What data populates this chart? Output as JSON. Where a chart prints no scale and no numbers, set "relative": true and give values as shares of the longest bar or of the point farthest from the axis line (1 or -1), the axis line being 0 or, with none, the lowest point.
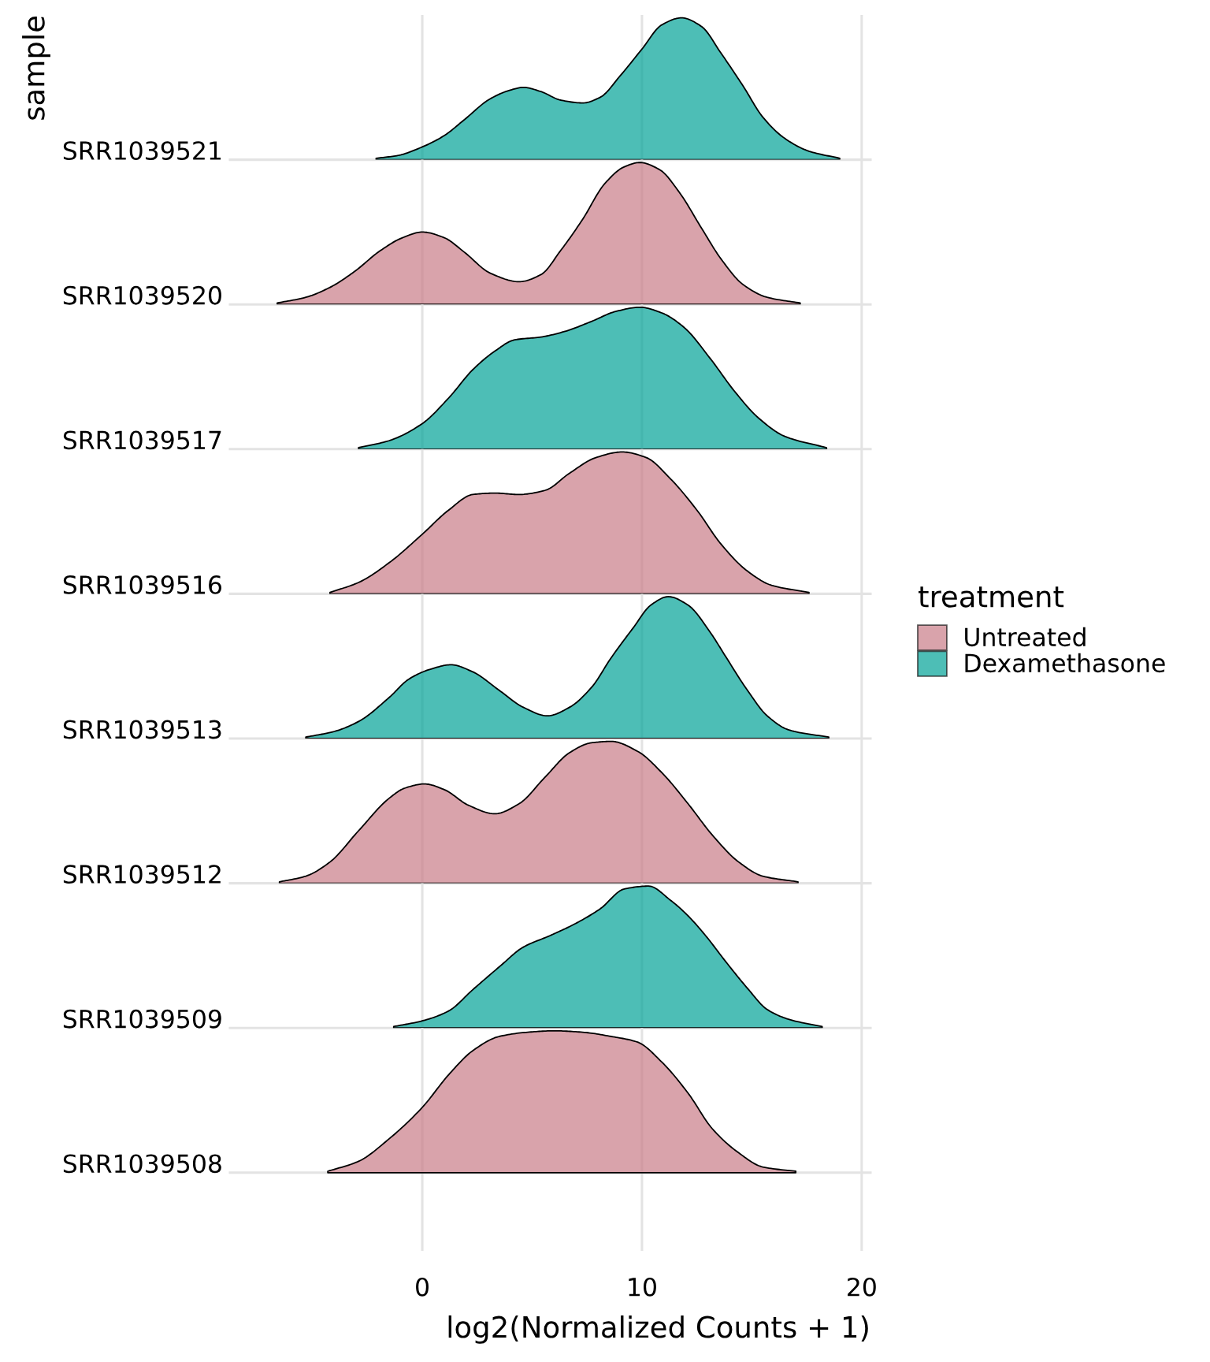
{
  "chart_data": [
    {
      "type": "area",
      "relative": true,
      "ylabel": "SRR1039521",
      "annotations": [
        "sample"
      ],
      "xlim": [
        -8.75,
        20.4
      ],
      "xticks": [
        0,
        10,
        20
      ],
      "tick_labels": false,
      "grid": "x",
      "x": [
        -2.1,
        -1.1,
        0,
        1,
        1.9,
        3.1,
        4,
        4.6,
        5.4,
        6.3,
        7.3,
        8.1,
        9,
        10,
        10.9,
        11.8,
        12.7,
        13.6,
        14.6,
        15.5,
        16.5,
        17.6,
        19
      ],
      "series": [
        {
          "name": "Dexamethasone",
          "color": "#01a297",
          "values": [
            0.01,
            0.03,
            0.09,
            0.17,
            0.28,
            0.43,
            0.49,
            0.51,
            0.48,
            0.42,
            0.4,
            0.44,
            0.59,
            0.78,
            0.95,
            1,
            0.94,
            0.75,
            0.52,
            0.3,
            0.15,
            0.06,
            0.01
          ]
        }
      ]
    },
    {
      "type": "area",
      "relative": true,
      "ylabel": "SRR1039520",
      "xlim": [
        -8.75,
        20.4
      ],
      "xticks": [
        0,
        10,
        20
      ],
      "tick_labels": false,
      "grid": "x",
      "x": [
        -6.6,
        -5.3,
        -4.2,
        -3.1,
        -1.9,
        -0.9,
        0,
        1,
        1.9,
        3.1,
        4.4,
        5.4,
        6.3,
        7.3,
        8.3,
        9.2,
        9.9,
        10.8,
        11.7,
        12.7,
        13.6,
        14.6,
        15.7,
        17.2
      ],
      "series": [
        {
          "name": "Untreated",
          "color": "#c97c88",
          "values": [
            0.01,
            0.05,
            0.12,
            0.23,
            0.38,
            0.47,
            0.51,
            0.47,
            0.37,
            0.22,
            0.16,
            0.21,
            0.38,
            0.6,
            0.85,
            0.97,
            1,
            0.95,
            0.79,
            0.54,
            0.32,
            0.14,
            0.05,
            0.01
          ]
        }
      ]
    },
    {
      "type": "area",
      "relative": true,
      "ylabel": "SRR1039517",
      "xlim": [
        -8.75,
        20.4
      ],
      "xticks": [
        0,
        10,
        20
      ],
      "tick_labels": false,
      "grid": "x",
      "x": [
        -2.9,
        -1.5,
        0,
        1.2,
        2.3,
        3.3,
        4.2,
        5.4,
        6.5,
        7.7,
        8.8,
        9.9,
        10.9,
        11.9,
        13.1,
        14.2,
        15.3,
        16.5,
        18.4
      ],
      "series": [
        {
          "name": "Dexamethasone",
          "color": "#01a297",
          "values": [
            0.01,
            0.06,
            0.18,
            0.36,
            0.56,
            0.69,
            0.77,
            0.79,
            0.83,
            0.9,
            0.97,
            1,
            0.96,
            0.86,
            0.64,
            0.41,
            0.22,
            0.09,
            0.01
          ]
        }
      ]
    },
    {
      "type": "area",
      "relative": true,
      "ylabel": "SRR1039516",
      "xlim": [
        -8.75,
        20.4
      ],
      "xticks": [
        0,
        10,
        20
      ],
      "tick_labels": false,
      "grid": "x",
      "x": [
        -4.2,
        -2.9,
        -1.5,
        0,
        1.2,
        2.3,
        3.3,
        4.4,
        5.6,
        6.7,
        7.9,
        9.1,
        10.2,
        11.3,
        12.5,
        13.6,
        14.8,
        15.9,
        17.6
      ],
      "series": [
        {
          "name": "Untreated",
          "color": "#c97c88",
          "values": [
            0.01,
            0.08,
            0.22,
            0.42,
            0.59,
            0.7,
            0.71,
            0.7,
            0.73,
            0.85,
            0.96,
            1,
            0.96,
            0.81,
            0.59,
            0.35,
            0.16,
            0.06,
            0.01
          ]
        }
      ]
    },
    {
      "type": "area",
      "relative": true,
      "ylabel": "SRR1039513",
      "legend": "right",
      "legend_title": "treatment",
      "xlim": [
        -8.75,
        20.4
      ],
      "xticks": [
        0,
        10,
        20
      ],
      "tick_labels": false,
      "grid": "x",
      "x": [
        -5.3,
        -4,
        -2.9,
        -1.5,
        -0.6,
        0.4,
        1.3,
        2.3,
        3.5,
        4.6,
        5.7,
        6.7,
        7.7,
        8.6,
        9.6,
        10.4,
        11.2,
        12.1,
        13.1,
        13.8,
        14.8,
        15.7,
        16.7,
        18.5
      ],
      "series": [
        {
          "name": "Dexamethasone",
          "color": "#01a297",
          "values": [
            0.01,
            0.05,
            0.12,
            0.29,
            0.42,
            0.49,
            0.52,
            0.47,
            0.34,
            0.22,
            0.16,
            0.22,
            0.36,
            0.57,
            0.78,
            0.94,
            1,
            0.94,
            0.75,
            0.58,
            0.34,
            0.16,
            0.06,
            0.01
          ]
        }
      ]
    },
    {
      "type": "area",
      "relative": true,
      "ylabel": "SRR1039512",
      "xlim": [
        -8.75,
        20.4
      ],
      "xticks": [
        0,
        10,
        20
      ],
      "tick_labels": false,
      "grid": "x",
      "x": [
        -6.5,
        -5.3,
        -4.2,
        -2.9,
        -1.5,
        -0.8,
        0.1,
        1,
        2.1,
        3.3,
        4.4,
        5.6,
        6.7,
        7.7,
        8.6,
        9.8,
        10.9,
        12.1,
        13.2,
        14.4,
        15.5,
        17.1
      ],
      "series": [
        {
          "name": "Untreated",
          "color": "#c97c88",
          "values": [
            0.01,
            0.05,
            0.15,
            0.37,
            0.6,
            0.67,
            0.7,
            0.66,
            0.55,
            0.49,
            0.56,
            0.75,
            0.92,
            0.99,
            1,
            0.93,
            0.78,
            0.56,
            0.34,
            0.15,
            0.05,
            0.01
          ]
        }
      ]
    },
    {
      "type": "area",
      "relative": true,
      "ylabel": "SRR1039509",
      "xlim": [
        -8.75,
        20.4
      ],
      "xticks": [
        0,
        10,
        20
      ],
      "tick_labels": false,
      "grid": "x",
      "x": [
        -1.3,
        0,
        1.2,
        2.3,
        3.5,
        4.6,
        5.8,
        6.9,
        8.1,
        9.2,
        10.3,
        11.3,
        12.1,
        12.9,
        13.8,
        14.8,
        15.7,
        16.7,
        18.2
      ],
      "series": [
        {
          "name": "Dexamethasone",
          "color": "#01a297",
          "values": [
            0.01,
            0.05,
            0.12,
            0.27,
            0.43,
            0.57,
            0.65,
            0.73,
            0.84,
            0.98,
            1,
            0.9,
            0.79,
            0.65,
            0.47,
            0.28,
            0.13,
            0.06,
            0.01
          ]
        }
      ]
    },
    {
      "type": "area",
      "relative": true,
      "ylabel": "SRR1039508",
      "xlabel": "log2(Normalized Counts + 1)",
      "xlim": [
        -8.75,
        20.4
      ],
      "xticks": [
        0,
        10,
        20
      ],
      "grid": "x",
      "x": [
        -4.3,
        -2.9,
        -1.5,
        0,
        1.2,
        2.3,
        3.5,
        4.8,
        6,
        7.3,
        8.6,
        9.8,
        10.9,
        12.1,
        13.2,
        14.4,
        15.5,
        17
      ],
      "series": [
        {
          "name": "Untreated",
          "color": "#c97c88",
          "values": [
            0.01,
            0.08,
            0.24,
            0.46,
            0.69,
            0.86,
            0.96,
            0.99,
            1,
            0.99,
            0.96,
            0.92,
            0.78,
            0.56,
            0.31,
            0.14,
            0.04,
            0.01
          ]
        }
      ]
    }
  ]
}
